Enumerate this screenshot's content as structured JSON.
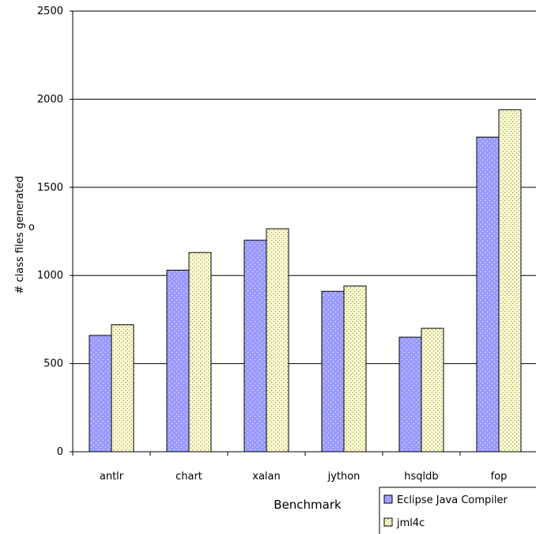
{
  "chart_data": {
    "type": "bar",
    "title": "",
    "xlabel": "Benchmark",
    "ylabel": "# class files generated",
    "ylabel_marker": "o",
    "categories": [
      "antlr",
      "chart",
      "xalan",
      "jython",
      "hsqldb",
      "fop"
    ],
    "series": [
      {
        "name": "Eclipse Java Compiler",
        "values": [
          660,
          1030,
          1200,
          910,
          650,
          1785
        ],
        "color": "#9999ff",
        "pattern": "dots-white"
      },
      {
        "name": "jml4c",
        "values": [
          720,
          1130,
          1265,
          940,
          700,
          1940
        ],
        "color": "#ffffcc",
        "pattern": "dots-dark"
      }
    ],
    "ylim": [
      0,
      2500
    ],
    "yticks": [
      0,
      500,
      1000,
      1500,
      2000,
      2500
    ],
    "grid": true,
    "legend_position": "bottom-right"
  }
}
